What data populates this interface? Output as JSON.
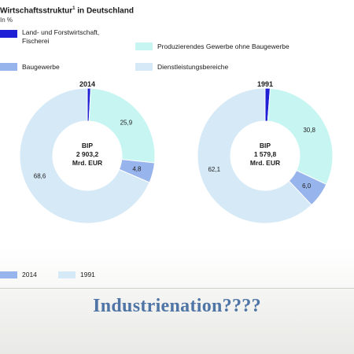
{
  "chart_title": "Wirtschaftsstruktur",
  "chart_title_sup": "1",
  "chart_title_suffix": " in Deutschland",
  "unit": "In %",
  "slide_caption": "Industrienation????",
  "colors": {
    "agriculture": "#1f1fd6",
    "industry": "#c6f5f2",
    "construction": "#98b4ec",
    "services": "#d5e9f7",
    "caption": "#4f74a6"
  },
  "legend": [
    {
      "key": "agriculture",
      "label": "Land- und Forstwirtschaft,\nFischerei"
    },
    {
      "key": "industry",
      "label": "Produzierendes Gewerbe ohne Baugewerbe"
    },
    {
      "key": "construction",
      "label": "Baugewerbe"
    },
    {
      "key": "services",
      "label": "Dienstleistungsbereiche"
    }
  ],
  "bottom_legend": [
    {
      "key": "construction",
      "label": "2014"
    },
    {
      "key": "services",
      "label": "1991"
    }
  ],
  "chart_data": [
    {
      "type": "pie",
      "year": "2014",
      "center_lines": [
        "BIP",
        "2 903,2",
        "Mrd. EUR"
      ],
      "slices": [
        {
          "key": "agriculture",
          "value": 0.8,
          "label": "0,8"
        },
        {
          "key": "industry",
          "value": 25.9,
          "label": "25,9"
        },
        {
          "key": "construction",
          "value": 4.8,
          "label": "4,8"
        },
        {
          "key": "services",
          "value": 68.6,
          "label": "68,6"
        }
      ]
    },
    {
      "type": "pie",
      "year": "1991",
      "center_lines": [
        "BIP",
        "1 579,8",
        "Mrd. EUR"
      ],
      "slices": [
        {
          "key": "agriculture",
          "value": 1.2,
          "label": "1,2"
        },
        {
          "key": "industry",
          "value": 30.8,
          "label": "30,8"
        },
        {
          "key": "construction",
          "value": 6.0,
          "label": "6,0"
        },
        {
          "key": "services",
          "value": 62.1,
          "label": "62,1"
        }
      ]
    }
  ]
}
